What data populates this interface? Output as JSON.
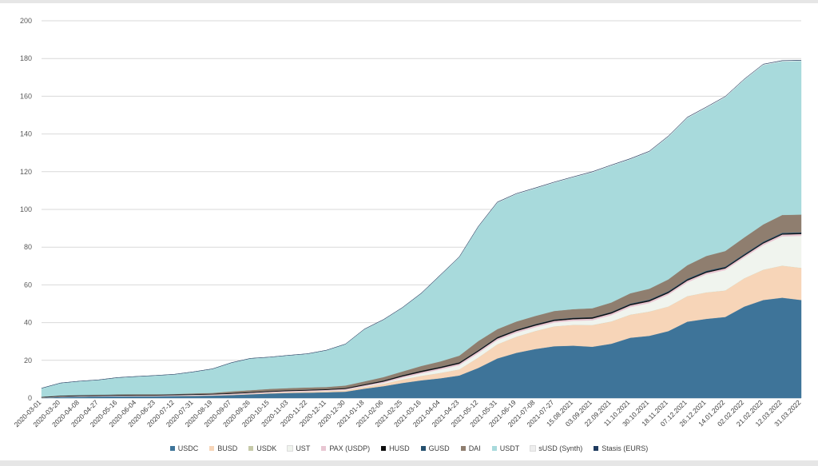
{
  "chart_data": {
    "type": "area",
    "stacked": true,
    "title": "",
    "xlabel": "",
    "ylabel": "",
    "ylim": [
      0,
      200
    ],
    "yticks": [
      0,
      20,
      40,
      60,
      80,
      100,
      120,
      140,
      160,
      180,
      200
    ],
    "grid": true,
    "legend_position": "bottom",
    "categories": [
      "2020-03-01",
      "2020-03-20",
      "2020-04-08",
      "2020-04-27",
      "2020-05-16",
      "2020-06-04",
      "2020-06-23",
      "2020-07-12",
      "2020-07-31",
      "2020-08-19",
      "2020-09-07",
      "2020-09-26",
      "2020-10-15",
      "2020-11-03",
      "2020-11-22",
      "2020-12-11",
      "2020-12-30",
      "2021-01-18",
      "2021-02-06",
      "2021-02-25",
      "2021-03-16",
      "2021-04-04",
      "2021-04-23",
      "2021-05-12",
      "2021-05-31",
      "2021-06-19",
      "2021-07-08",
      "2021-07-27",
      "15.08.2021",
      "03.09.2021",
      "22.09.2021",
      "11.10.2021",
      "30.10.2021",
      "18.11.2021",
      "07.12.2021",
      "26.12.2021",
      "14.01.2022",
      "02.02.2022",
      "21.02.2022",
      "12.03.2022",
      "31.03.2022"
    ],
    "series": [
      {
        "name": "USDC",
        "color": "#3e7499",
        "values": [
          0.2,
          0.6,
          0.8,
          0.9,
          1.0,
          1.0,
          1.0,
          1.1,
          1.2,
          1.3,
          1.6,
          2.0,
          2.4,
          2.7,
          2.9,
          3.1,
          3.4,
          5.0,
          6.3,
          8.0,
          9.4,
          10.5,
          12.0,
          16.0,
          21.0,
          24.0,
          26.0,
          27.5,
          27.8,
          27.2,
          28.8,
          32.0,
          33.0,
          35.5,
          40.5,
          42.0,
          43.0,
          48.5,
          52.0,
          53.2,
          52.0
        ]
      },
      {
        "name": "BUSD",
        "color": "#f7d5b8",
        "values": [
          0,
          0.05,
          0.1,
          0.1,
          0.1,
          0.15,
          0.15,
          0.15,
          0.2,
          0.2,
          0.25,
          0.3,
          0.4,
          0.5,
          0.5,
          0.6,
          0.7,
          0.9,
          1.2,
          1.8,
          2.3,
          2.8,
          3.2,
          5.5,
          7.5,
          8.5,
          9.5,
          10.5,
          11.0,
          11.5,
          11.8,
          12.2,
          12.8,
          13.0,
          13.5,
          14.0,
          14.0,
          15.0,
          16.0,
          17.0,
          17.0
        ]
      },
      {
        "name": "USDK",
        "color": "#c5c9a8",
        "values": [
          0,
          0.01,
          0.01,
          0.02,
          0.02,
          0.02,
          0.02,
          0.02,
          0.02,
          0.03,
          0.03,
          0.03,
          0.03,
          0.03,
          0.03,
          0.03,
          0.03,
          0.03,
          0.03,
          0.03,
          0.03,
          0.03,
          0.03,
          0.03,
          0.03,
          0.03,
          0.03,
          0.03,
          0.03,
          0.03,
          0.03,
          0.03,
          0.03,
          0.03,
          0.03,
          0.03,
          0.03,
          0.03,
          0.03,
          0.03,
          0.03
        ]
      },
      {
        "name": "UST",
        "color": "#f0f4ee",
        "values": [
          0,
          0,
          0,
          0,
          0,
          0,
          0,
          0,
          0,
          0,
          0,
          0.01,
          0.02,
          0.05,
          0.1,
          0.15,
          0.2,
          0.3,
          0.5,
          0.9,
          1.3,
          1.8,
          2.2,
          2.3,
          2.2,
          2.1,
          2.0,
          2.0,
          2.1,
          2.5,
          3.3,
          4.0,
          4.5,
          6.2,
          7.3,
          9.5,
          10.8,
          11.0,
          13.0,
          15.5,
          17.0
        ]
      },
      {
        "name": "PAX (USDP)",
        "color": "#e8c6d2",
        "values": [
          0.1,
          0.2,
          0.2,
          0.2,
          0.25,
          0.25,
          0.25,
          0.3,
          0.35,
          0.4,
          0.45,
          0.45,
          0.5,
          0.5,
          0.5,
          0.5,
          0.55,
          0.6,
          0.7,
          0.75,
          0.8,
          0.8,
          0.85,
          0.9,
          0.9,
          0.9,
          0.9,
          0.9,
          0.9,
          0.95,
          0.95,
          0.95,
          0.95,
          0.95,
          0.95,
          0.95,
          0.95,
          0.95,
          0.95,
          0.95,
          0.95
        ]
      },
      {
        "name": "HUSD",
        "color": "#0d0d0d",
        "values": [
          0.3,
          0.4,
          0.4,
          0.4,
          0.4,
          0.4,
          0.4,
          0.4,
          0.4,
          0.4,
          0.4,
          0.4,
          0.4,
          0.4,
          0.4,
          0.4,
          0.45,
          0.5,
          0.55,
          0.6,
          0.65,
          0.6,
          0.6,
          0.6,
          0.6,
          0.6,
          0.6,
          0.6,
          0.6,
          0.6,
          0.6,
          0.6,
          0.6,
          0.6,
          0.55,
          0.55,
          0.5,
          0.5,
          0.5,
          0.5,
          0.5
        ]
      },
      {
        "name": "GUSD",
        "color": "#25506e",
        "values": [
          0,
          0.01,
          0.01,
          0.01,
          0.01,
          0.01,
          0.01,
          0.01,
          0.01,
          0.01,
          0.01,
          0.01,
          0.01,
          0.01,
          0.01,
          0.01,
          0.01,
          0.02,
          0.03,
          0.05,
          0.07,
          0.1,
          0.1,
          0.12,
          0.15,
          0.15,
          0.15,
          0.15,
          0.15,
          0.15,
          0.2,
          0.25,
          0.3,
          0.35,
          0.4,
          0.4,
          0.4,
          0.4,
          0.4,
          0.4,
          0.4
        ]
      },
      {
        "name": "DAI",
        "color": "#8f7e6f",
        "values": [
          0.1,
          0.1,
          0.1,
          0.1,
          0.15,
          0.2,
          0.2,
          0.2,
          0.3,
          0.4,
          0.8,
          1.0,
          1.1,
          1.1,
          1.2,
          1.1,
          1.3,
          1.5,
          1.8,
          2.0,
          2.5,
          2.8,
          3.5,
          4.8,
          4.2,
          4.3,
          4.4,
          4.5,
          4.6,
          4.7,
          5.0,
          5.5,
          5.8,
          6.3,
          7.2,
          7.9,
          8.3,
          8.8,
          9.2,
          9.5,
          9.4
        ]
      },
      {
        "name": "USDT",
        "color": "#a8dadc",
        "values": [
          4.5,
          6.6,
          7.3,
          7.9,
          8.9,
          9.4,
          9.9,
          10.4,
          11.4,
          12.7,
          15.2,
          16.8,
          16.8,
          17.3,
          17.8,
          19.4,
          21.9,
          27.6,
          30.3,
          33.7,
          38.4,
          45.6,
          52.2,
          60.5,
          67.0,
          67.5,
          67.5,
          68.0,
          69.8,
          72.0,
          72.5,
          71.0,
          72.5,
          75.5,
          78.0,
          78.5,
          81.5,
          83.5,
          84.5,
          81.4,
          81.4
        ]
      },
      {
        "name": "sUSD (Synth)",
        "color": "#eeeeee",
        "values": [
          0,
          0,
          0,
          0,
          0,
          0,
          0,
          0,
          0,
          0.01,
          0.01,
          0.02,
          0.03,
          0.03,
          0.03,
          0.04,
          0.05,
          0.08,
          0.1,
          0.1,
          0.12,
          0.15,
          0.15,
          0.2,
          0.25,
          0.25,
          0.25,
          0.25,
          0.25,
          0.3,
          0.3,
          0.3,
          0.3,
          0.35,
          0.35,
          0.35,
          0.35,
          0.35,
          0.35,
          0.35,
          0.35
        ]
      },
      {
        "name": "Stasis (EURS)",
        "color": "#1f3b5f",
        "values": [
          0.05,
          0.05,
          0.05,
          0.05,
          0.05,
          0.05,
          0.05,
          0.05,
          0.05,
          0.05,
          0.05,
          0.05,
          0.06,
          0.06,
          0.06,
          0.07,
          0.07,
          0.08,
          0.08,
          0.09,
          0.1,
          0.1,
          0.1,
          0.1,
          0.1,
          0.1,
          0.1,
          0.1,
          0.1,
          0.1,
          0.1,
          0.1,
          0.1,
          0.1,
          0.1,
          0.1,
          0.1,
          0.1,
          0.1,
          0.1,
          0.1
        ]
      }
    ]
  }
}
